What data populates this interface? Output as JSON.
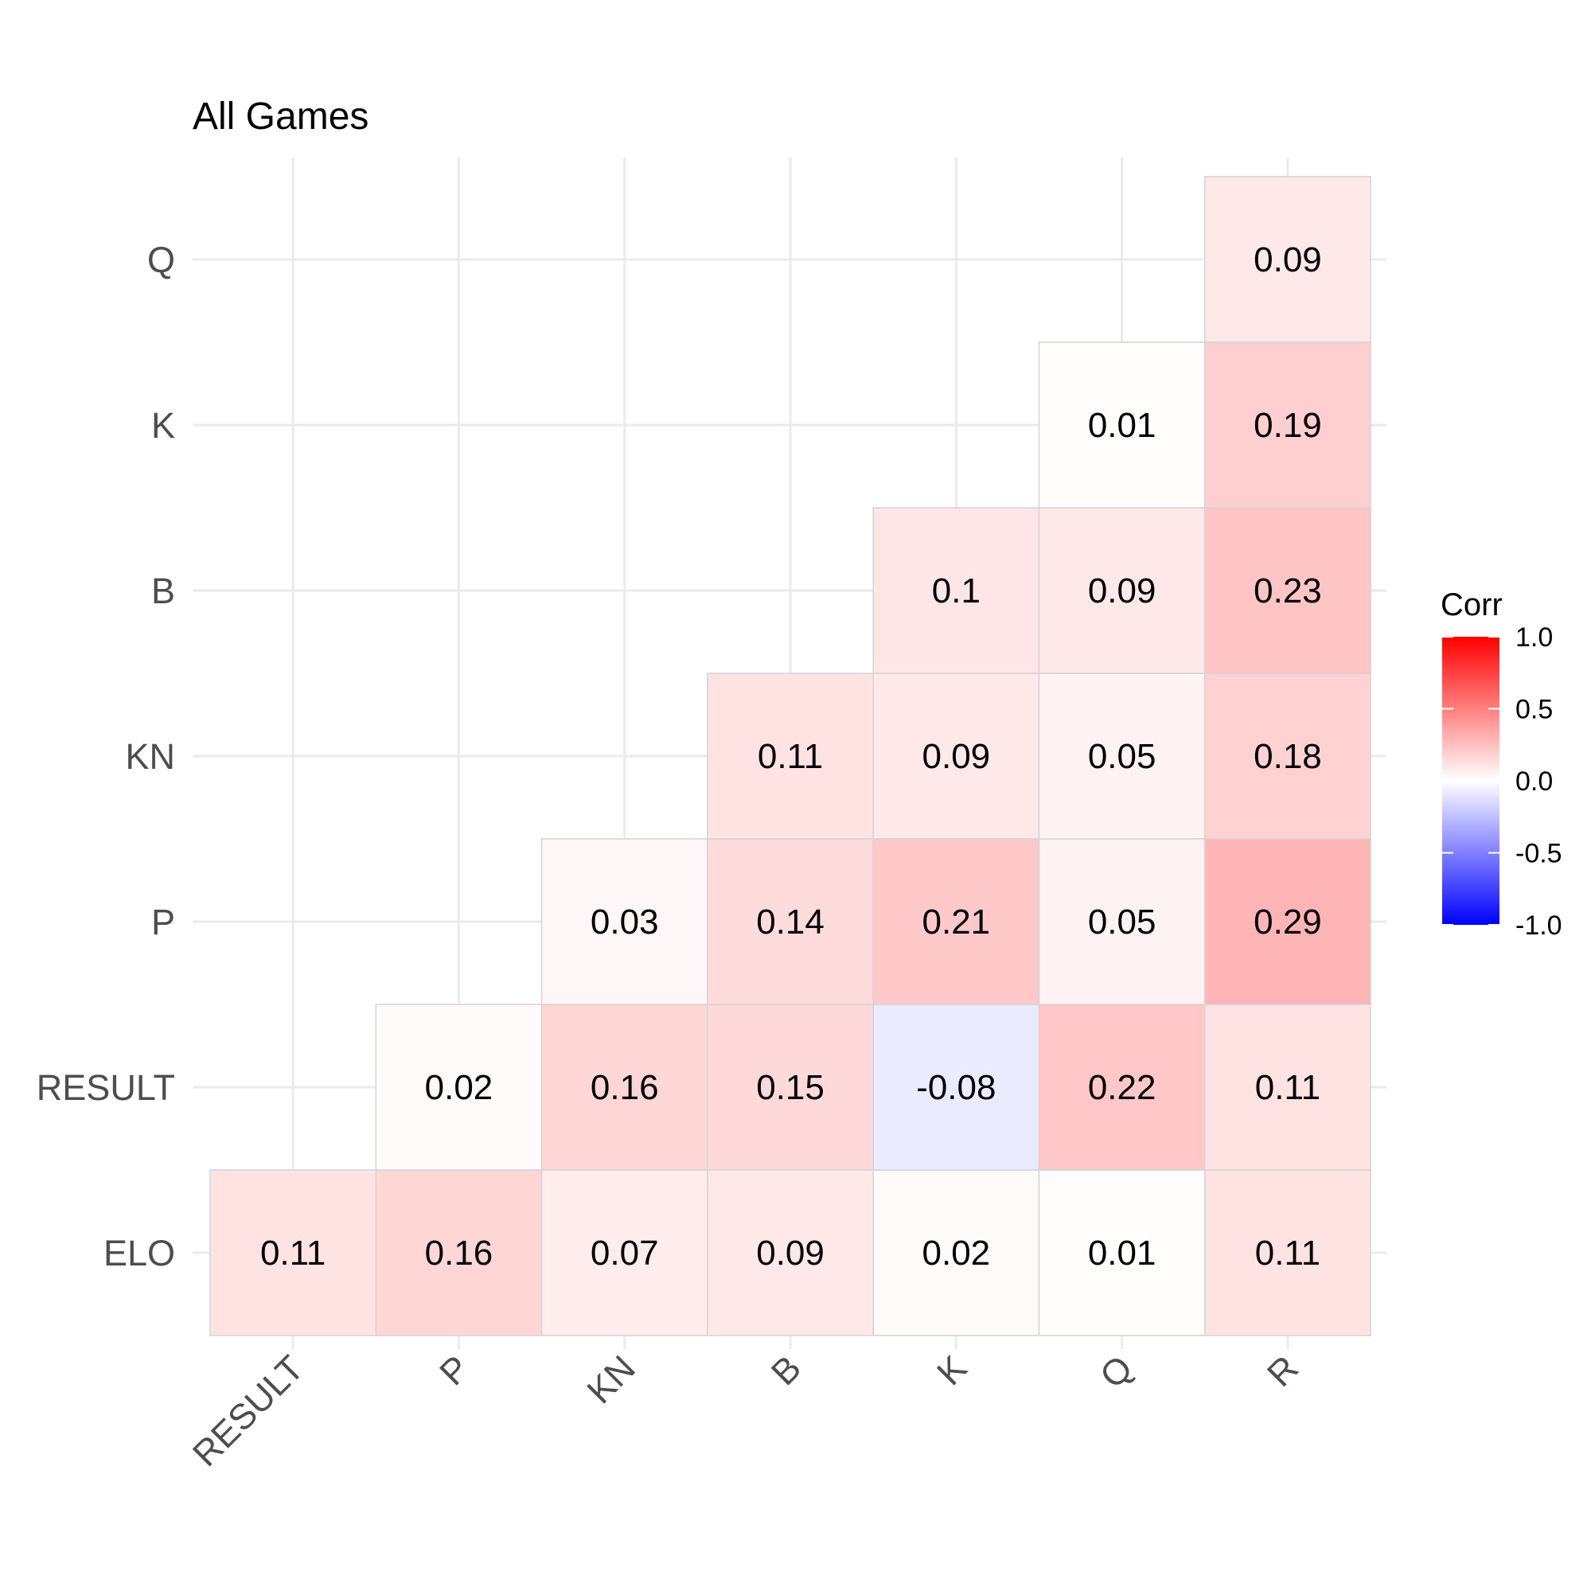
{
  "chart_data": {
    "type": "heatmap",
    "title": "All Games",
    "x_categories": [
      "RESULT",
      "P",
      "KN",
      "B",
      "K",
      "Q",
      "R"
    ],
    "y_categories": [
      "ELO",
      "RESULT",
      "P",
      "KN",
      "B",
      "K",
      "Q"
    ],
    "cells": [
      {
        "x": "RESULT",
        "y": "ELO",
        "value": 0.11
      },
      {
        "x": "P",
        "y": "ELO",
        "value": 0.16
      },
      {
        "x": "KN",
        "y": "ELO",
        "value": 0.07
      },
      {
        "x": "B",
        "y": "ELO",
        "value": 0.09
      },
      {
        "x": "K",
        "y": "ELO",
        "value": 0.02
      },
      {
        "x": "Q",
        "y": "ELO",
        "value": 0.01
      },
      {
        "x": "R",
        "y": "ELO",
        "value": 0.11
      },
      {
        "x": "P",
        "y": "RESULT",
        "value": 0.02
      },
      {
        "x": "KN",
        "y": "RESULT",
        "value": 0.16
      },
      {
        "x": "B",
        "y": "RESULT",
        "value": 0.15
      },
      {
        "x": "K",
        "y": "RESULT",
        "value": -0.08
      },
      {
        "x": "Q",
        "y": "RESULT",
        "value": 0.22
      },
      {
        "x": "R",
        "y": "RESULT",
        "value": 0.11
      },
      {
        "x": "KN",
        "y": "P",
        "value": 0.03
      },
      {
        "x": "B",
        "y": "P",
        "value": 0.14
      },
      {
        "x": "K",
        "y": "P",
        "value": 0.21
      },
      {
        "x": "Q",
        "y": "P",
        "value": 0.05
      },
      {
        "x": "R",
        "y": "P",
        "value": 0.29
      },
      {
        "x": "B",
        "y": "KN",
        "value": 0.11
      },
      {
        "x": "K",
        "y": "KN",
        "value": 0.09
      },
      {
        "x": "Q",
        "y": "KN",
        "value": 0.05
      },
      {
        "x": "R",
        "y": "KN",
        "value": 0.18
      },
      {
        "x": "K",
        "y": "B",
        "value": 0.1
      },
      {
        "x": "Q",
        "y": "B",
        "value": 0.09
      },
      {
        "x": "R",
        "y": "B",
        "value": 0.23
      },
      {
        "x": "Q",
        "y": "K",
        "value": 0.01
      },
      {
        "x": "R",
        "y": "K",
        "value": 0.19
      },
      {
        "x": "R",
        "y": "Q",
        "value": 0.09
      }
    ],
    "legend": {
      "title": "Corr",
      "ticks": [
        "1.0",
        "0.5",
        "0.0",
        "-0.5",
        "-1.0"
      ],
      "range": [
        -1,
        1
      ],
      "colors": {
        "low": "#0000ff",
        "mid": "#ffffff",
        "high": "#ff0000"
      },
      "placement": "right"
    },
    "grid": true
  }
}
